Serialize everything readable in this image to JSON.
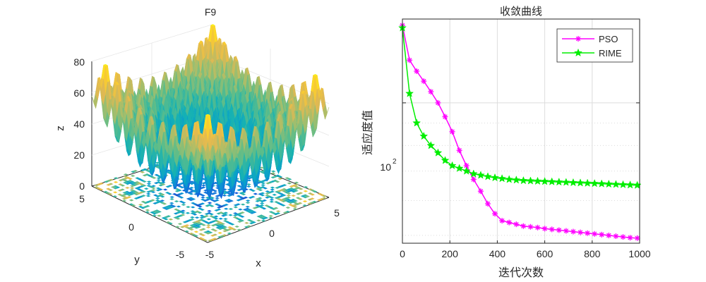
{
  "chart_data": [
    {
      "type": "surface3d",
      "title": "F9",
      "xlabel": "x",
      "ylabel": "y",
      "zlabel": "z",
      "xticks": [
        "-5",
        "0",
        "5"
      ],
      "yticks": [
        "-5",
        "0",
        "5"
      ],
      "zticks": [
        "0",
        "20",
        "40",
        "60",
        "80"
      ],
      "xlim": [
        -5.12,
        5.12
      ],
      "ylim": [
        -5.12,
        5.12
      ],
      "zlim": [
        0,
        80
      ],
      "function": "Rastrigin: 20 + x^2 + y^2 - 10cos(2πx) - 10cos(2πy)",
      "colormap": "parula",
      "contour_floor": true
    },
    {
      "type": "line",
      "yscale": "log",
      "title": "收敛曲线",
      "xlabel": "迭代次数",
      "ylabel": "适应度值",
      "xlim": [
        0,
        1000
      ],
      "xticks": [
        "0",
        "200",
        "400",
        "600",
        "800",
        "1000"
      ],
      "ylim": [
        48,
        155
      ],
      "ytick_value": 100,
      "ytick_base": "10",
      "ytick_exp": "2",
      "grid": true,
      "legend_position": "top-right",
      "x": [
        0,
        30,
        60,
        90,
        120,
        150,
        180,
        210,
        240,
        270,
        300,
        330,
        360,
        390,
        420,
        450,
        480,
        510,
        540,
        570,
        600,
        630,
        660,
        690,
        720,
        750,
        780,
        810,
        840,
        870,
        900,
        930,
        960,
        990
      ],
      "series": [
        {
          "name": "PSO",
          "color": "#ff00ff",
          "marker": "asterisk",
          "values": [
            150,
            125,
            118,
            112,
            106,
            100,
            93,
            86,
            78,
            72,
            67,
            63,
            59,
            56,
            54,
            53.5,
            53,
            52.5,
            52.3,
            52.1,
            51.8,
            51.6,
            51.4,
            51.2,
            51,
            50.8,
            50.6,
            50.4,
            50.2,
            50,
            49.8,
            49.6,
            49.4,
            49.3
          ]
        },
        {
          "name": "RIME",
          "color": "#00ee00",
          "marker": "star",
          "values": [
            148,
            105,
            90,
            84,
            80,
            77,
            74,
            72,
            71,
            70,
            69,
            68.5,
            68,
            67.6,
            67.3,
            67,
            66.8,
            66.6,
            66.5,
            66.4,
            66.3,
            66.2,
            66.1,
            66,
            65.9,
            65.8,
            65.7,
            65.6,
            65.5,
            65.4,
            65.3,
            65.2,
            65.1,
            65
          ]
        }
      ]
    }
  ]
}
